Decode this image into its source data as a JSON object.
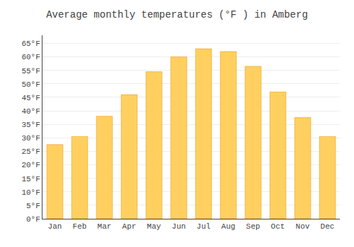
{
  "chart_data": {
    "type": "bar",
    "title": "Average monthly temperatures (°F ) in Amberg",
    "categories": [
      "Jan",
      "Feb",
      "Mar",
      "Apr",
      "May",
      "Jun",
      "Jul",
      "Aug",
      "Sep",
      "Oct",
      "Nov",
      "Dec"
    ],
    "values": [
      27.5,
      30.5,
      38.0,
      46.0,
      54.5,
      60.0,
      63.0,
      62.0,
      56.5,
      47.0,
      37.5,
      30.5
    ],
    "color": "#FFD060",
    "ylim": [
      0,
      68
    ],
    "yticks": [
      {
        "value": 0,
        "label": "0°F"
      },
      {
        "value": 5,
        "label": "5°F"
      },
      {
        "value": 10,
        "label": "10°F"
      },
      {
        "value": 15,
        "label": "15°F"
      },
      {
        "value": 20,
        "label": "20°F"
      },
      {
        "value": 25,
        "label": "25°F"
      },
      {
        "value": 30,
        "label": "30°F"
      },
      {
        "value": 35,
        "label": "35°F"
      },
      {
        "value": 40,
        "label": "40°F"
      },
      {
        "value": 45,
        "label": "45°F"
      },
      {
        "value": 50,
        "label": "50°F"
      },
      {
        "value": 55,
        "label": "55°F"
      },
      {
        "value": 60,
        "label": "60°F"
      },
      {
        "value": 65,
        "label": "65°F"
      }
    ],
    "grid": true
  }
}
